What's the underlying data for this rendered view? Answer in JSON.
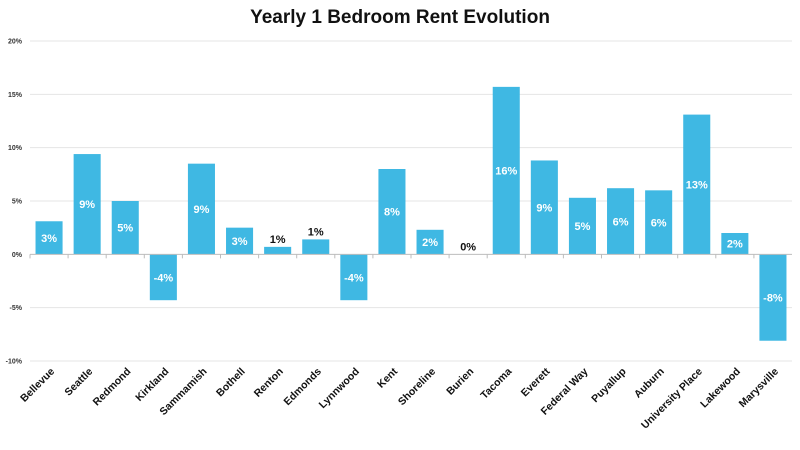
{
  "chart_data": {
    "type": "bar",
    "title": "Yearly 1 Bedroom Rent Evolution",
    "xlabel": "",
    "ylabel": "",
    "ylim": [
      -10,
      20
    ],
    "yticks": [
      "20%",
      "15%",
      "10%",
      "5%",
      "0%",
      "-5%",
      "-10%"
    ],
    "ytick_values": [
      20,
      15,
      10,
      5,
      0,
      -5,
      -10
    ],
    "grid": true,
    "bar_color": "#3fb8e3",
    "categories": [
      "Bellevue",
      "Seattle",
      "Redmond",
      "Kirkland",
      "Sammamish",
      "Bothell",
      "Renton",
      "Edmonds",
      "Lynnwood",
      "Kent",
      "Shoreline",
      "Burien",
      "Tacoma",
      "Everett",
      "Federal Way",
      "Puyallup",
      "Auburn",
      "University Place",
      "Lakewood",
      "Marysville"
    ],
    "values": [
      3.1,
      9.4,
      5.0,
      -4.3,
      8.5,
      2.5,
      0.7,
      1.4,
      -4.3,
      8.0,
      2.3,
      0.0,
      15.7,
      8.8,
      5.3,
      6.2,
      6.0,
      13.1,
      2.0,
      -8.1
    ],
    "data_labels": [
      "3%",
      "9%",
      "5%",
      "-4%",
      "9%",
      "3%",
      "1%",
      "1%",
      "-4%",
      "8%",
      "2%",
      "0%",
      "16%",
      "9%",
      "5%",
      "6%",
      "6%",
      "13%",
      "2%",
      "-8%"
    ]
  }
}
